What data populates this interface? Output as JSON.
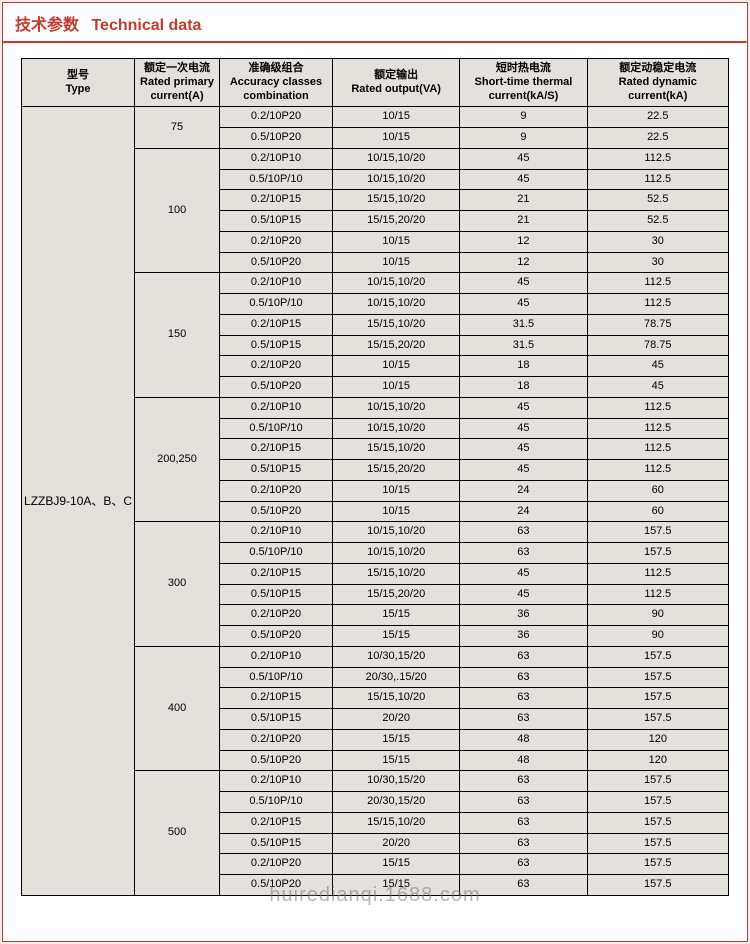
{
  "title_cn": "技术参数",
  "title_en": "Technical data",
  "watermark": "huiredianqi.1688.com",
  "columns": [
    {
      "cn": "型号",
      "en": "Type"
    },
    {
      "cn": "额定一次电流",
      "en": "Rated primary current(A)"
    },
    {
      "cn": "准确级组合",
      "en": "Accuracy classes combination"
    },
    {
      "cn": "额定输出",
      "en": "Rated output(VA)"
    },
    {
      "cn": "短时热电流",
      "en": "Short-time thermal current(kA/S)"
    },
    {
      "cn": "额定动稳定电流",
      "en": "Rated dynamic current(kA)"
    }
  ],
  "type_label": "LZZBJ9-10A、B、C",
  "col_widths": [
    "16%",
    "12%",
    "16%",
    "18%",
    "18%",
    "20%"
  ],
  "groups": [
    {
      "primary": "75",
      "rows": [
        {
          "acc": "0.2/10P20",
          "out": "10/15",
          "st": "9",
          "dyn": "22.5"
        },
        {
          "acc": "0.5/10P20",
          "out": "10/15",
          "st": "9",
          "dyn": "22.5"
        }
      ]
    },
    {
      "primary": "100",
      "rows": [
        {
          "acc": "0.2/10P10",
          "out": "10/15,10/20",
          "st": "45",
          "dyn": "112.5"
        },
        {
          "acc": "0.5/10P/10",
          "out": "10/15,10/20",
          "st": "45",
          "dyn": "112.5"
        },
        {
          "acc": "0.2/10P15",
          "out": "15/15,10/20",
          "st": "21",
          "dyn": "52.5"
        },
        {
          "acc": "0.5/10P15",
          "out": "15/15,20/20",
          "st": "21",
          "dyn": "52.5"
        },
        {
          "acc": "0.2/10P20",
          "out": "10/15",
          "st": "12",
          "dyn": "30"
        },
        {
          "acc": "0.5/10P20",
          "out": "10/15",
          "st": "12",
          "dyn": "30"
        }
      ]
    },
    {
      "primary": "150",
      "rows": [
        {
          "acc": "0.2/10P10",
          "out": "10/15,10/20",
          "st": "45",
          "dyn": "112.5"
        },
        {
          "acc": "0.5/10P/10",
          "out": "10/15,10/20",
          "st": "45",
          "dyn": "112.5"
        },
        {
          "acc": "0.2/10P15",
          "out": "15/15,10/20",
          "st": "31.5",
          "dyn": "78.75"
        },
        {
          "acc": "0.5/10P15",
          "out": "15/15,20/20",
          "st": "31.5",
          "dyn": "78.75"
        },
        {
          "acc": "0.2/10P20",
          "out": "10/15",
          "st": "18",
          "dyn": "45"
        },
        {
          "acc": "0.5/10P20",
          "out": "10/15",
          "st": "18",
          "dyn": "45"
        }
      ]
    },
    {
      "primary": "200,250",
      "rows": [
        {
          "acc": "0.2/10P10",
          "out": "10/15,10/20",
          "st": "45",
          "dyn": "112.5"
        },
        {
          "acc": "0.5/10P/10",
          "out": "10/15,10/20",
          "st": "45",
          "dyn": "112.5"
        },
        {
          "acc": "0.2/10P15",
          "out": "15/15,10/20",
          "st": "45",
          "dyn": "112.5"
        },
        {
          "acc": "0.5/10P15",
          "out": "15/15,20/20",
          "st": "45",
          "dyn": "112.5"
        },
        {
          "acc": "0.2/10P20",
          "out": "10/15",
          "st": "24",
          "dyn": "60"
        },
        {
          "acc": "0.5/10P20",
          "out": "10/15",
          "st": "24",
          "dyn": "60"
        }
      ]
    },
    {
      "primary": "300",
      "rows": [
        {
          "acc": "0.2/10P10",
          "out": "10/15,10/20",
          "st": "63",
          "dyn": "157.5"
        },
        {
          "acc": "0.5/10P/10",
          "out": "10/15,10/20",
          "st": "63",
          "dyn": "157.5"
        },
        {
          "acc": "0.2/10P15",
          "out": "15/15,10/20",
          "st": "45",
          "dyn": "112.5"
        },
        {
          "acc": "0.5/10P15",
          "out": "15/15,20/20",
          "st": "45",
          "dyn": "112.5"
        },
        {
          "acc": "0.2/10P20",
          "out": "15/15",
          "st": "36",
          "dyn": "90"
        },
        {
          "acc": "0.5/10P20",
          "out": "15/15",
          "st": "36",
          "dyn": "90"
        }
      ]
    },
    {
      "primary": "400",
      "rows": [
        {
          "acc": "0.2/10P10",
          "out": "10/30,15/20",
          "st": "63",
          "dyn": "157.5"
        },
        {
          "acc": "0.5/10P/10",
          "out": "20/30,.15/20",
          "st": "63",
          "dyn": "157.5"
        },
        {
          "acc": "0.2/10P15",
          "out": "15/15,10/20",
          "st": "63",
          "dyn": "157.5"
        },
        {
          "acc": "0.5/10P15",
          "out": "20/20",
          "st": "63",
          "dyn": "157.5"
        },
        {
          "acc": "0.2/10P20",
          "out": "15/15",
          "st": "48",
          "dyn": "120"
        },
        {
          "acc": "0.5/10P20",
          "out": "15/15",
          "st": "48",
          "dyn": "120"
        }
      ]
    },
    {
      "primary": "500",
      "rows": [
        {
          "acc": "0.2/10P10",
          "out": "10/30,15/20",
          "st": "63",
          "dyn": "157.5"
        },
        {
          "acc": "0.5/10P/10",
          "out": "20/30,15/20",
          "st": "63",
          "dyn": "157.5"
        },
        {
          "acc": "0.2/10P15",
          "out": "15/15,10/20",
          "st": "63",
          "dyn": "157.5"
        },
        {
          "acc": "0.5/10P15",
          "out": "20/20",
          "st": "63",
          "dyn": "157.5"
        },
        {
          "acc": "0.2/10P20",
          "out": "15/15",
          "st": "63",
          "dyn": "157.5"
        },
        {
          "acc": "0.5/10P20",
          "out": "15/15",
          "st": "63",
          "dyn": "157.5"
        }
      ]
    }
  ]
}
